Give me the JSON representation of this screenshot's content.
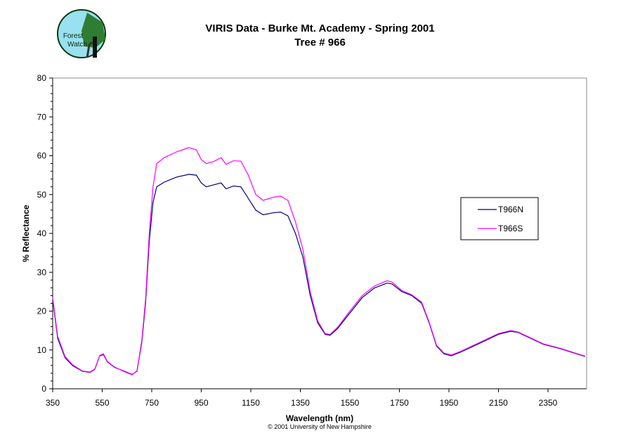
{
  "logo": {
    "text": "Forest Watch",
    "colors": {
      "sky": "#99e0f0",
      "tree": "#2e7d32"
    }
  },
  "chart_data": {
    "type": "line",
    "title": "VIRIS Data - Burke Mt. Academy - Spring 2001",
    "subtitle": "Tree # 966",
    "xlabel": "Wavelength (nm)",
    "ylabel": "% Reflectance",
    "xlim": [
      350,
      2506
    ],
    "ylim": [
      0,
      80
    ],
    "xticks": [
      350,
      550,
      750,
      950,
      1150,
      1350,
      1550,
      1750,
      1950,
      2150,
      2350
    ],
    "yticks": [
      0,
      10,
      20,
      30,
      40,
      50,
      60,
      70,
      80
    ],
    "grid": false,
    "legend_position": "right",
    "footer": "© 2001 University of New Hampshire",
    "x": [
      350,
      370,
      400,
      430,
      470,
      500,
      520,
      540,
      555,
      570,
      600,
      640,
      670,
      690,
      710,
      725,
      740,
      755,
      770,
      800,
      850,
      900,
      930,
      950,
      970,
      1000,
      1030,
      1050,
      1080,
      1110,
      1140,
      1170,
      1200,
      1240,
      1270,
      1300,
      1330,
      1360,
      1390,
      1420,
      1450,
      1470,
      1500,
      1550,
      1600,
      1650,
      1700,
      1720,
      1760,
      1800,
      1840,
      1870,
      1900,
      1930,
      1960,
      2000,
      2050,
      2100,
      2150,
      2200,
      2230,
      2280,
      2330,
      2400,
      2450,
      2500
    ],
    "series": [
      {
        "name": "T966N",
        "color": "#000080",
        "values": [
          23,
          13,
          8,
          6,
          4.5,
          4.2,
          5,
          8.5,
          8.8,
          7,
          5.5,
          4.5,
          3.7,
          4.5,
          12,
          22,
          38,
          48,
          52,
          53.2,
          54.5,
          55.2,
          55,
          53,
          52,
          52.5,
          53,
          51.5,
          52.2,
          52,
          49,
          46,
          44.8,
          45.3,
          45.5,
          44.5,
          40,
          34,
          24,
          17,
          14,
          13.8,
          15.5,
          19.5,
          23.5,
          26,
          27.2,
          27,
          25,
          24,
          22,
          17,
          11,
          9,
          8.5,
          9.5,
          11,
          12.5,
          14,
          14.8,
          14.5,
          13,
          11.5,
          10.3,
          9.3,
          8.3
        ]
      },
      {
        "name": "T966S",
        "color": "#ff00ff",
        "values": [
          23.5,
          13.5,
          8.3,
          6.2,
          4.6,
          4.3,
          5.1,
          8.6,
          9,
          7.1,
          5.6,
          4.4,
          3.6,
          4.6,
          12.5,
          23,
          40,
          52,
          58,
          59.5,
          61,
          62.1,
          61.5,
          59,
          58,
          58.5,
          59.5,
          57.8,
          58.7,
          58.6,
          55,
          50,
          48.5,
          49.3,
          49.6,
          48.5,
          43,
          36,
          25,
          17.5,
          14.2,
          14,
          15.8,
          20,
          24,
          26.5,
          27.8,
          27.5,
          25.3,
          24.2,
          22.3,
          17.2,
          11.2,
          9.2,
          8.7,
          9.7,
          11.2,
          12.7,
          14.2,
          15,
          14.6,
          13.1,
          11.6,
          10.4,
          9.4,
          8.4
        ]
      }
    ]
  }
}
